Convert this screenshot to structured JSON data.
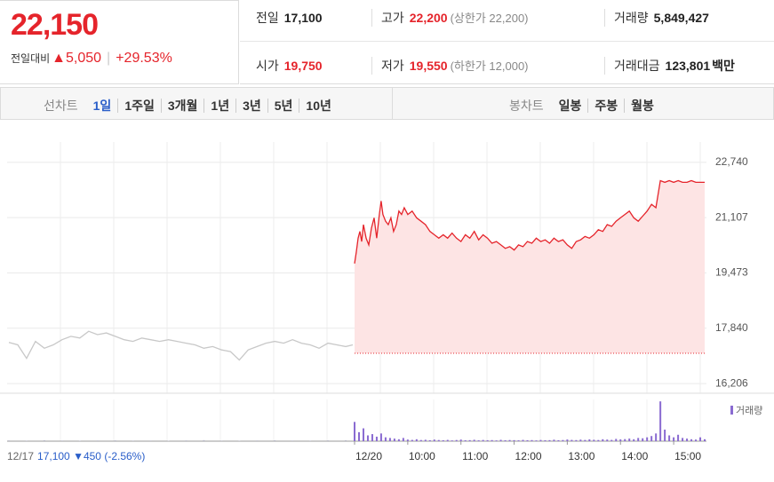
{
  "header": {
    "price": "22,150",
    "change_label": "전일대비",
    "change": "▲5,050",
    "change_pct": "+29.53%",
    "stats": [
      {
        "label": "전일",
        "value": "17,100"
      },
      {
        "label": "고가",
        "value": "22,200",
        "note": "(상한가 22,200)",
        "value_color": "#e5242b"
      },
      {
        "label": "거래량",
        "value": "5,849,427"
      },
      {
        "label": "시가",
        "value": "19,750",
        "value_color": "#e5242b"
      },
      {
        "label": "저가",
        "value": "19,550",
        "note": "(하한가 12,000)",
        "value_color": "#e5242b"
      },
      {
        "label": "거래대금",
        "value": "123,801",
        "unit": "백만"
      }
    ]
  },
  "tabs": {
    "line_label": "선차트",
    "line_periods": [
      "1일",
      "1주일",
      "3개월",
      "1년",
      "3년",
      "5년",
      "10년"
    ],
    "active_index": 0,
    "candle_label": "봉차트",
    "candle_periods": [
      "일봉",
      "주봉",
      "월봉"
    ]
  },
  "chart_data": {
    "type": "line",
    "xlim": [
      -392,
      397
    ],
    "ylim": [
      15920,
      23340
    ],
    "yticks": [
      {
        "value": 22740,
        "label": "22,740"
      },
      {
        "value": 21107,
        "label": "21,107"
      },
      {
        "value": 19473,
        "label": "19,473"
      },
      {
        "value": 17840,
        "label": "17,840"
      },
      {
        "value": 16206,
        "label": "16,206"
      }
    ],
    "xticks": [
      {
        "value": 0,
        "label": "12/20"
      },
      {
        "value": 60,
        "label": "10:00"
      },
      {
        "value": 120,
        "label": "11:00"
      },
      {
        "value": 180,
        "label": "12:00"
      },
      {
        "value": 240,
        "label": "13:00"
      },
      {
        "value": 300,
        "label": "14:00"
      },
      {
        "value": 360,
        "label": "15:00"
      }
    ],
    "grid": true,
    "baseline": 17100,
    "series": [
      {
        "color": "#c8c8c8",
        "x": [
          -390,
          -380,
          -370,
          -360,
          -350,
          -340,
          -330,
          -320,
          -310,
          -300,
          -290,
          -280,
          -270,
          -260,
          -250,
          -240,
          -230,
          -220,
          -210,
          -200,
          -190,
          -180,
          -170,
          -160,
          -150,
          -140,
          -130,
          -120,
          -110,
          -100,
          -90,
          -80,
          -70,
          -60,
          -50,
          -40,
          -30,
          -20,
          -10,
          -2
        ],
        "values": [
          17420,
          17350,
          16950,
          17450,
          17250,
          17350,
          17500,
          17600,
          17550,
          17750,
          17650,
          17700,
          17600,
          17500,
          17450,
          17550,
          17500,
          17450,
          17500,
          17450,
          17400,
          17350,
          17250,
          17300,
          17200,
          17150,
          16900,
          17200,
          17300,
          17400,
          17450,
          17400,
          17500,
          17400,
          17350,
          17250,
          17400,
          17350,
          17300,
          17350
        ]
      },
      {
        "color": "#e5242b",
        "fill": "#fde4e4",
        "x": [
          0,
          2,
          4,
          6,
          8,
          10,
          13,
          16,
          19,
          22,
          25,
          28,
          30,
          32,
          35,
          38,
          41,
          44,
          47,
          50,
          53,
          56,
          60,
          65,
          70,
          75,
          80,
          85,
          90,
          95,
          100,
          105,
          110,
          115,
          120,
          125,
          130,
          135,
          140,
          145,
          150,
          155,
          160,
          165,
          170,
          175,
          180,
          185,
          190,
          195,
          200,
          205,
          210,
          215,
          220,
          225,
          230,
          235,
          240,
          245,
          250,
          255,
          260,
          265,
          270,
          275,
          280,
          285,
          290,
          295,
          300,
          305,
          310,
          315,
          320,
          325,
          330,
          335,
          340,
          345,
          350,
          355,
          360,
          365,
          370,
          375,
          380,
          385,
          390,
          395
        ],
        "values": [
          19750,
          20100,
          20500,
          20700,
          20400,
          20900,
          20500,
          20300,
          20800,
          21100,
          20500,
          21200,
          21600,
          21200,
          21000,
          20900,
          21100,
          20700,
          20900,
          21300,
          21200,
          21400,
          21200,
          21300,
          21100,
          21000,
          20900,
          20700,
          20600,
          20500,
          20600,
          20500,
          20650,
          20500,
          20400,
          20600,
          20500,
          20700,
          20450,
          20600,
          20500,
          20350,
          20400,
          20300,
          20200,
          20250,
          20150,
          20300,
          20250,
          20400,
          20350,
          20500,
          20400,
          20450,
          20350,
          20500,
          20400,
          20450,
          20300,
          20200,
          20400,
          20450,
          20550,
          20500,
          20600,
          20750,
          20700,
          20900,
          20850,
          21000,
          21100,
          21200,
          21300,
          21100,
          21000,
          21150,
          21300,
          21500,
          21400,
          22200,
          22150,
          22200,
          22150,
          22200,
          22150,
          22150,
          22200,
          22150,
          22150,
          22150
        ]
      }
    ],
    "volume": {
      "name": "거래량",
      "ylim": [
        0,
        65000
      ],
      "series": [
        {
          "color": "#b9b9c8",
          "x": [
            -390,
            -370,
            -350,
            -330,
            -310,
            -290,
            -270,
            -250,
            -230,
            -210,
            -190,
            -170,
            -150,
            -130,
            -110,
            -90,
            -70,
            -50,
            -30,
            -10
          ],
          "values": [
            1200,
            900,
            1500,
            1000,
            800,
            1100,
            1300,
            900,
            1000,
            700,
            1200,
            1600,
            900,
            800,
            1100,
            1400,
            1000,
            900,
            1300,
            1500
          ]
        },
        {
          "color": "#8a6bd1",
          "x": [
            0,
            5,
            10,
            15,
            20,
            25,
            30,
            35,
            40,
            45,
            50,
            55,
            60,
            65,
            70,
            75,
            80,
            85,
            90,
            95,
            100,
            105,
            110,
            115,
            120,
            125,
            130,
            135,
            140,
            145,
            150,
            155,
            160,
            165,
            170,
            175,
            180,
            185,
            190,
            195,
            200,
            205,
            210,
            215,
            220,
            225,
            230,
            235,
            240,
            245,
            250,
            255,
            260,
            265,
            270,
            275,
            280,
            285,
            290,
            295,
            300,
            305,
            310,
            315,
            320,
            325,
            330,
            335,
            340,
            345,
            350,
            355,
            360,
            365,
            370,
            375,
            380,
            385,
            390,
            395
          ],
          "values": [
            30000,
            14000,
            20000,
            9000,
            11000,
            7000,
            12000,
            6000,
            5000,
            4000,
            3000,
            5000,
            2500,
            2000,
            3000,
            1800,
            2200,
            1500,
            2500,
            1800,
            1500,
            2000,
            1200,
            1800,
            2500,
            1400,
            1600,
            2200,
            1300,
            1900,
            1500,
            1700,
            1200,
            2100,
            1400,
            1800,
            1600,
            1300,
            2000,
            1500,
            1700,
            1200,
            1900,
            1400,
            1600,
            2300,
            1500,
            1800,
            2600,
            2000,
            1700,
            2400,
            1900,
            2800,
            2200,
            1800,
            3000,
            2500,
            2000,
            3500,
            2800,
            3200,
            4000,
            3000,
            5000,
            4500,
            6000,
            8000,
            12000,
            62000,
            18000,
            9000,
            6000,
            10000,
            5000,
            4000,
            3000,
            2500,
            6000,
            3000
          ]
        }
      ]
    }
  },
  "footer": {
    "date": "12/17",
    "close": "17,100",
    "change": "▼450",
    "change_pct": "(-2.56%)"
  }
}
